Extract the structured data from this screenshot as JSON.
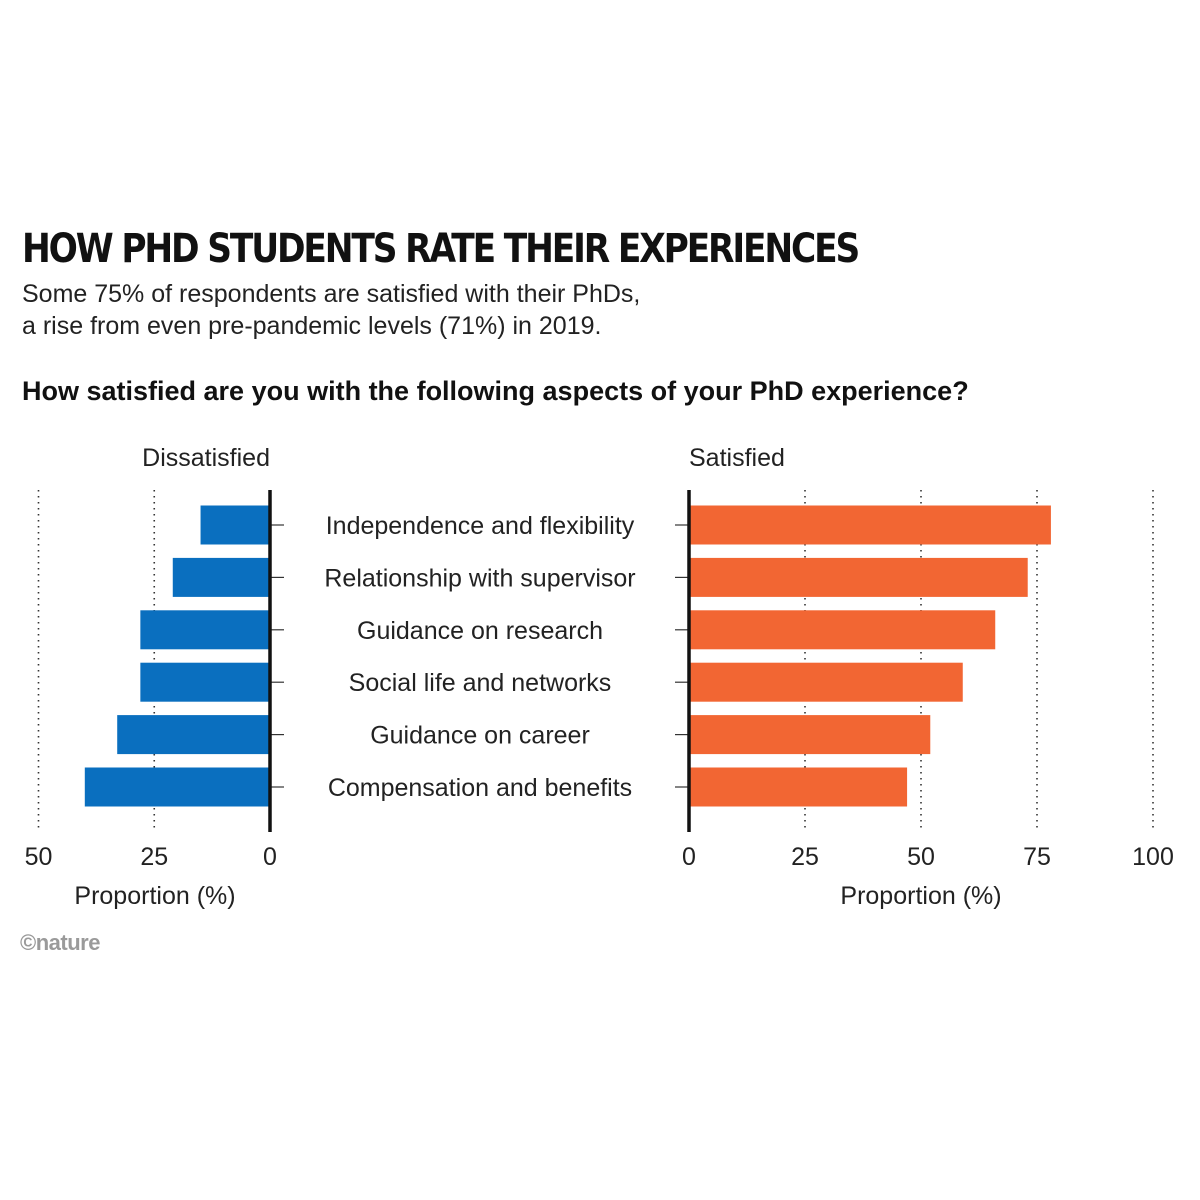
{
  "title": "HOW PHD STUDENTS RATE THEIR EXPERIENCES",
  "subtitle_lines": [
    "Some 75% of respondents are satisfied with their PhDs,",
    "a rise from even pre-pandemic levels (71%) in 2019."
  ],
  "question": "How satisfied are you with the following aspects of your PhD experience?",
  "credit": "©nature",
  "chart_data": {
    "type": "bar",
    "orientation": "horizontal",
    "categories": [
      "Independence and flexibility",
      "Relationship with supervisor",
      "Guidance on research",
      "Social life and networks",
      "Guidance on career",
      "Compensation and benefits"
    ],
    "series": [
      {
        "name": "Dissatisfied",
        "color": "#0a6fbf",
        "values": [
          15,
          21,
          28,
          28,
          33,
          40
        ],
        "xlim": [
          50,
          0
        ],
        "ticks": [
          50,
          25,
          0
        ],
        "xlabel": "Proportion (%)"
      },
      {
        "name": "Satisfied",
        "color": "#f26633",
        "values": [
          78,
          73,
          66,
          59,
          52,
          47
        ],
        "xlim": [
          0,
          100
        ],
        "ticks": [
          0,
          25,
          50,
          75,
          100
        ],
        "xlabel": "Proportion (%)"
      }
    ],
    "grid": "dotted vertical"
  }
}
